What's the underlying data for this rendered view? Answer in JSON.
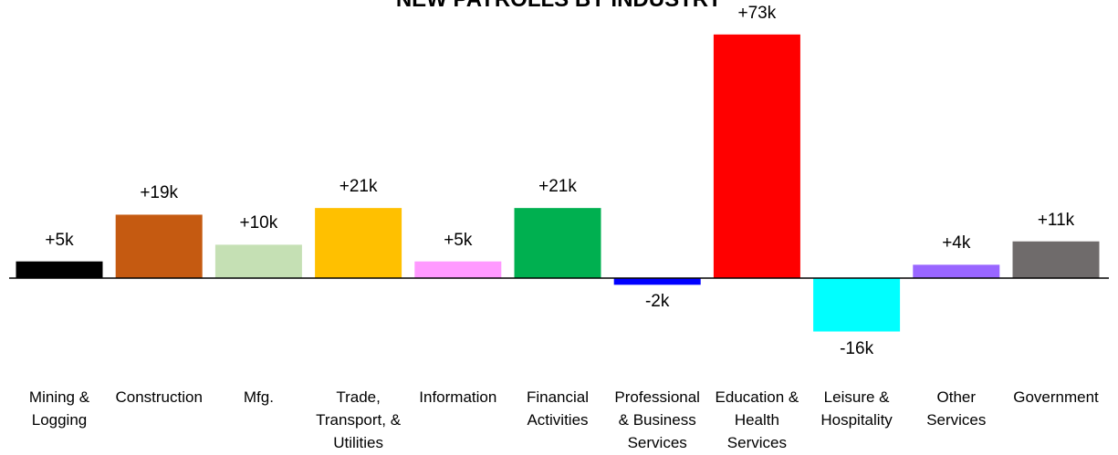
{
  "chart_data": {
    "type": "bar",
    "title": "NEW PAYROLLS BY INDUSTRY",
    "categories": [
      "Mining & Logging",
      "Construction",
      "Mfg.",
      "Trade, Transport, & Utilities",
      "Information",
      "Financial Activities",
      "Professional & Business Services",
      "Education & Health Services",
      "Leisure & Hospitality",
      "Other Services",
      "Government"
    ],
    "values": [
      5,
      19,
      10,
      21,
      5,
      21,
      -2,
      73,
      -16,
      4,
      11
    ],
    "value_labels": [
      "+5k",
      "+19k",
      "+10k",
      "+21k",
      "+5k",
      "+21k",
      "-2k",
      "+73k",
      "-16k",
      "+4k",
      "+11k"
    ],
    "colors": [
      "#000000",
      "#c55a11",
      "#c5e0b4",
      "#ffc000",
      "#ff99ff",
      "#00b050",
      "#0000ff",
      "#ff0000",
      "#00ffff",
      "#9966ff",
      "#6f6b6b"
    ]
  }
}
